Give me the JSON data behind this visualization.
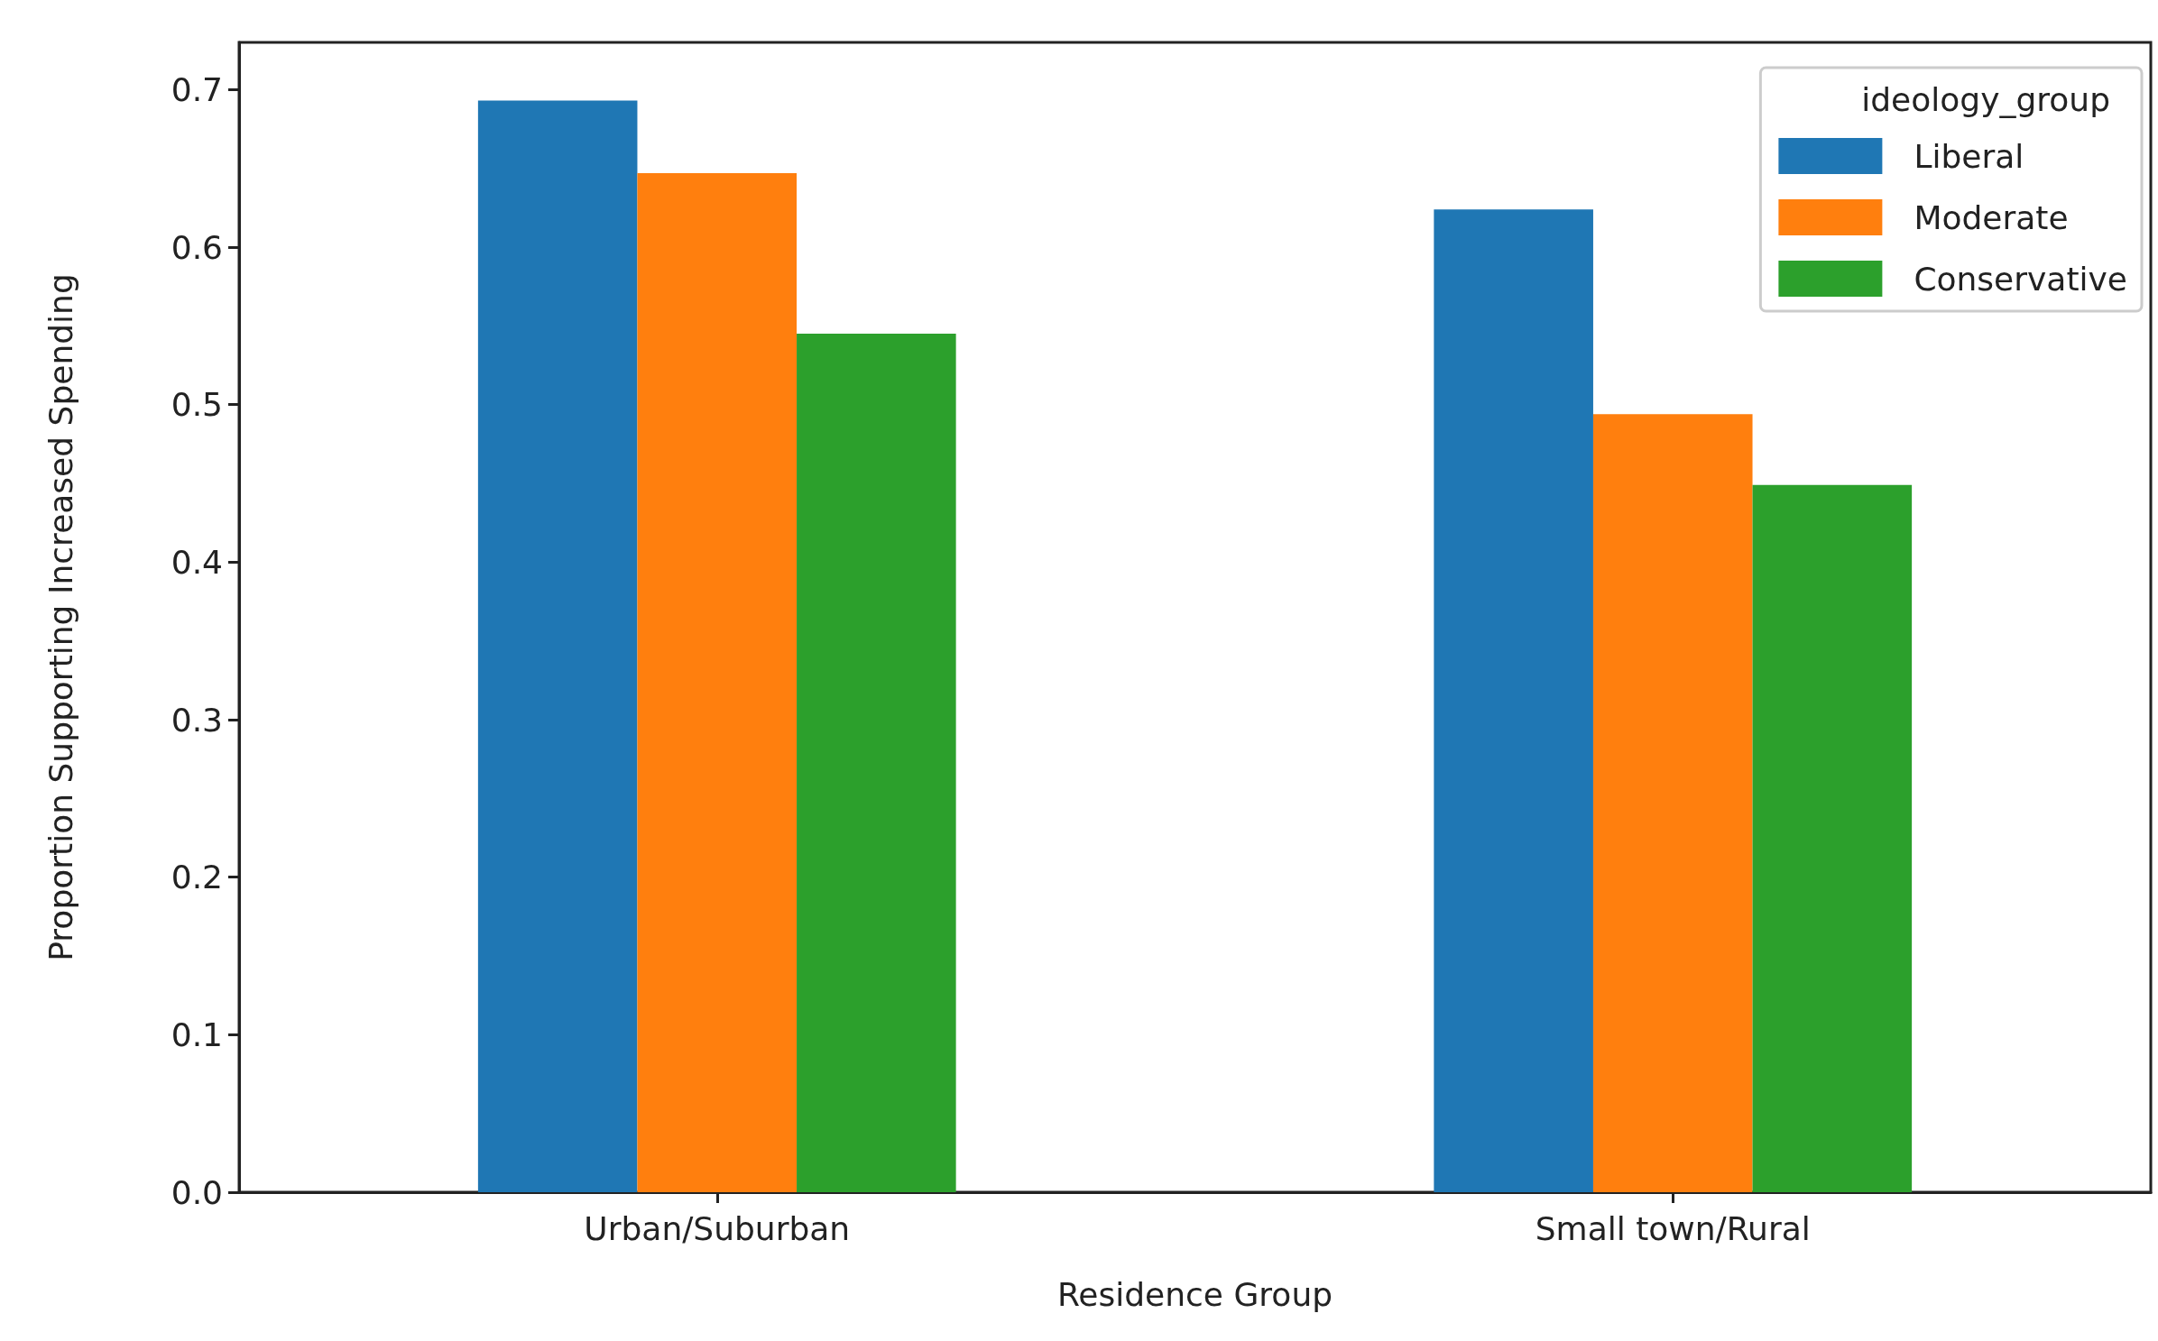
{
  "chart_data": {
    "type": "bar",
    "xlabel": "Residence Group",
    "ylabel": "Proportion Supporting Increased Spending",
    "legend_title": "ideology_group",
    "legend": "top right",
    "grid": false,
    "categories": [
      "Urban/Suburban",
      "Small town/Rural"
    ],
    "series": [
      {
        "name": "Liberal",
        "color": "#1f77b4",
        "values": [
          0.693,
          0.624
        ]
      },
      {
        "name": "Moderate",
        "color": "#ff7f0e",
        "values": [
          0.647,
          0.494
        ]
      },
      {
        "name": "Conservative",
        "color": "#2ca02c",
        "values": [
          0.545,
          0.449
        ]
      }
    ],
    "ylim": [
      0,
      0.73
    ],
    "yticks": [
      {
        "value": 0,
        "label": "0.0"
      },
      {
        "value": 0.1,
        "label": "0.1"
      },
      {
        "value": 0.2,
        "label": "0.2"
      },
      {
        "value": 0.3,
        "label": "0.3"
      },
      {
        "value": 0.4,
        "label": "0.4"
      },
      {
        "value": 0.5,
        "label": "0.5"
      },
      {
        "value": 0.6,
        "label": "0.6"
      },
      {
        "value": 0.7,
        "label": "0.7"
      }
    ]
  }
}
